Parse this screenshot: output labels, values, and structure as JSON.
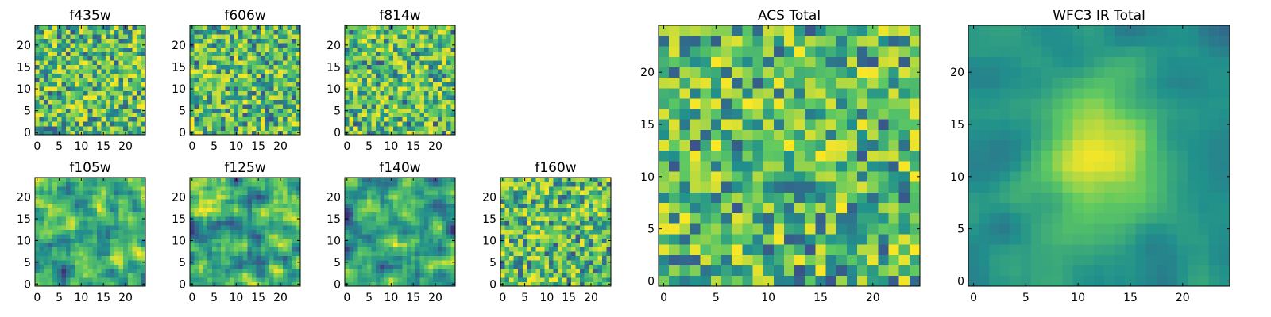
{
  "chart_data": [
    {
      "type": "heatmap",
      "title": "f435w",
      "xticks": [
        "0",
        "5",
        "10",
        "15",
        "20"
      ],
      "yticks": [
        "0",
        "5",
        "10",
        "15",
        "20"
      ],
      "xlim": [
        -0.5,
        24.5
      ],
      "ylim": [
        -0.5,
        24.5
      ],
      "pattern": "noise"
    },
    {
      "type": "heatmap",
      "title": "f606w",
      "xticks": [
        "0",
        "5",
        "10",
        "15",
        "20"
      ],
      "yticks": [
        "0",
        "5",
        "10",
        "15",
        "20"
      ],
      "xlim": [
        -0.5,
        24.5
      ],
      "ylim": [
        -0.5,
        24.5
      ],
      "pattern": "noise"
    },
    {
      "type": "heatmap",
      "title": "f814w",
      "xticks": [
        "0",
        "5",
        "10",
        "15",
        "20"
      ],
      "yticks": [
        "0",
        "5",
        "10",
        "15",
        "20"
      ],
      "xlim": [
        -0.5,
        24.5
      ],
      "ylim": [
        -0.5,
        24.5
      ],
      "pattern": "noise"
    },
    {
      "type": "heatmap",
      "title": "f105w",
      "xticks": [
        "0",
        "5",
        "10",
        "15",
        "20"
      ],
      "yticks": [
        "0",
        "5",
        "10",
        "15",
        "20"
      ],
      "xlim": [
        -0.5,
        24.5
      ],
      "ylim": [
        -0.5,
        24.5
      ],
      "pattern": "smooth"
    },
    {
      "type": "heatmap",
      "title": "f125w",
      "xticks": [
        "0",
        "5",
        "10",
        "15",
        "20"
      ],
      "yticks": [
        "0",
        "5",
        "10",
        "15",
        "20"
      ],
      "xlim": [
        -0.5,
        24.5
      ],
      "ylim": [
        -0.5,
        24.5
      ],
      "pattern": "smooth"
    },
    {
      "type": "heatmap",
      "title": "f140w",
      "xticks": [
        "0",
        "5",
        "10",
        "15",
        "20"
      ],
      "yticks": [
        "0",
        "5",
        "10",
        "15",
        "20"
      ],
      "xlim": [
        -0.5,
        24.5
      ],
      "ylim": [
        -0.5,
        24.5
      ],
      "pattern": "smooth"
    },
    {
      "type": "heatmap",
      "title": "f160w",
      "xticks": [
        "0",
        "5",
        "10",
        "15",
        "20"
      ],
      "yticks": [
        "0",
        "5",
        "10",
        "15",
        "20"
      ],
      "xlim": [
        -0.5,
        24.5
      ],
      "ylim": [
        -0.5,
        24.5
      ],
      "pattern": "noise"
    },
    {
      "type": "heatmap",
      "title": "ACS Total",
      "xticks": [
        "0",
        "5",
        "10",
        "15",
        "20"
      ],
      "yticks": [
        "0",
        "5",
        "10",
        "15",
        "20"
      ],
      "xlim": [
        -0.5,
        24.5
      ],
      "ylim": [
        -0.5,
        24.5
      ],
      "pattern": "noise"
    },
    {
      "type": "heatmap",
      "title": "WFC3 IR Total",
      "xticks": [
        "0",
        "5",
        "10",
        "15",
        "20"
      ],
      "yticks": [
        "0",
        "5",
        "10",
        "15",
        "20"
      ],
      "xlim": [
        -0.5,
        24.5
      ],
      "ylim": [
        -0.5,
        24.5
      ],
      "pattern": "blob"
    }
  ],
  "colormap": [
    "#440154",
    "#3b528b",
    "#21918c",
    "#5ec962",
    "#fde725"
  ],
  "grid_size": 25
}
